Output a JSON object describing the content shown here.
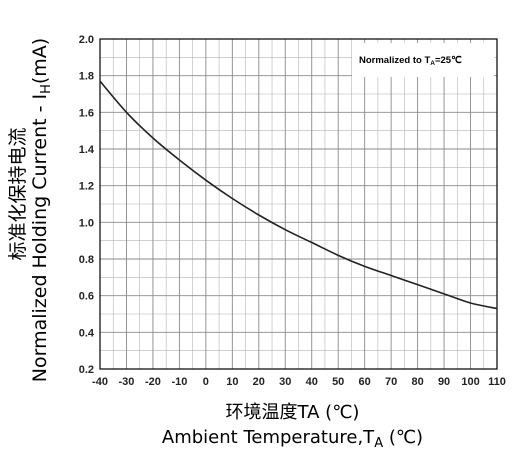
{
  "chart_data": {
    "type": "line",
    "annotation": "Normalized to T",
    "annotation_sub": "A",
    "annotation_tail": "=25℃",
    "ylabel_cn": "标准化保持电流",
    "ylabel_en": "Normalized Holding Current - I",
    "ylabel_sub": "H",
    "ylabel_tail": "(mA)",
    "xlabel_cn": "环境温度TA (℃)",
    "xlabel_en": "Ambient Temperature,T",
    "xlabel_sub": "A",
    "xlabel_tail": " (℃)",
    "xlim": [
      -40,
      110
    ],
    "ylim": [
      0.2,
      2.0
    ],
    "xticks": [
      "-40",
      "-30",
      "-20",
      "-10",
      "0",
      "10",
      "20",
      "30",
      "40",
      "50",
      "60",
      "70",
      "80",
      "90",
      "100",
      "110"
    ],
    "yticks": [
      "0.2",
      "0.4",
      "0.6",
      "0.8",
      "1.0",
      "1.2",
      "1.4",
      "1.6",
      "1.8",
      "2.0"
    ],
    "grid": true,
    "series": [
      {
        "x": [
          -40,
          -30,
          -20,
          -10,
          0,
          10,
          20,
          30,
          40,
          50,
          60,
          70,
          80,
          90,
          100,
          110
        ],
        "y": [
          1.77,
          1.6,
          1.46,
          1.34,
          1.23,
          1.13,
          1.04,
          0.96,
          0.89,
          0.82,
          0.76,
          0.71,
          0.66,
          0.61,
          0.56,
          0.53
        ]
      }
    ],
    "line_color": "#222222"
  }
}
